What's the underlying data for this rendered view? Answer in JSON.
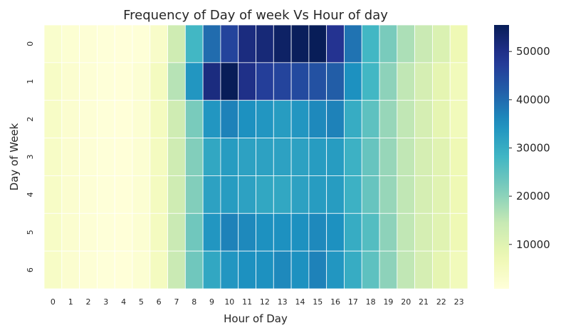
{
  "chart_data": {
    "type": "heatmap",
    "title": "Frequency of Day of week Vs Hour of day",
    "xlabel": "Hour of Day",
    "ylabel": "Day of Week",
    "x_categories": [
      "0",
      "1",
      "2",
      "3",
      "4",
      "5",
      "6",
      "7",
      "8",
      "9",
      "10",
      "11",
      "12",
      "13",
      "14",
      "15",
      "16",
      "17",
      "18",
      "19",
      "20",
      "21",
      "22",
      "23"
    ],
    "y_categories": [
      "0",
      "1",
      "2",
      "3",
      "4",
      "5",
      "6"
    ],
    "values": [
      [
        3000,
        2000,
        1500,
        1000,
        800,
        1200,
        3500,
        13000,
        28000,
        40000,
        46000,
        51000,
        52000,
        54000,
        55000,
        55500,
        49000,
        39000,
        28000,
        22000,
        17000,
        14000,
        11000,
        7000
      ],
      [
        4000,
        2500,
        1500,
        1000,
        900,
        1800,
        5000,
        16000,
        34000,
        51000,
        55500,
        50000,
        47000,
        46000,
        45000,
        44000,
        42000,
        35000,
        28000,
        20000,
        15000,
        12000,
        9000,
        6000
      ],
      [
        4000,
        2500,
        1500,
        1000,
        900,
        2000,
        5000,
        13000,
        22000,
        34000,
        37000,
        35000,
        34000,
        33000,
        34000,
        36000,
        37000,
        30000,
        25000,
        19000,
        15000,
        12000,
        9000,
        6000
      ],
      [
        4000,
        2500,
        1500,
        1000,
        900,
        2000,
        5000,
        13000,
        21000,
        31000,
        33000,
        32000,
        32000,
        32000,
        32000,
        33000,
        33000,
        29000,
        24000,
        19000,
        15000,
        12000,
        10000,
        7000
      ],
      [
        4000,
        2500,
        1500,
        1000,
        900,
        2000,
        5000,
        13000,
        21000,
        32000,
        33000,
        32000,
        31000,
        31000,
        32000,
        33000,
        33000,
        29000,
        24000,
        19000,
        15000,
        12000,
        10000,
        7000
      ],
      [
        4000,
        2500,
        1500,
        1000,
        900,
        2000,
        5000,
        14000,
        23000,
        34000,
        37000,
        36000,
        35000,
        35000,
        35000,
        36000,
        35000,
        30000,
        26000,
        20000,
        15000,
        12000,
        10000,
        7000
      ],
      [
        4000,
        2500,
        1500,
        1000,
        900,
        2000,
        5000,
        14000,
        23000,
        31000,
        34000,
        35000,
        35000,
        36000,
        35000,
        37000,
        34000,
        30000,
        25000,
        20000,
        15000,
        12000,
        9000,
        6000
      ]
    ],
    "colorbar": {
      "ticks": [
        "10000",
        "20000",
        "30000",
        "40000",
        "50000"
      ],
      "tick_values": [
        10000,
        20000,
        30000,
        40000,
        50000
      ],
      "vmin": 800,
      "vmax": 55500,
      "colormap": "YlGnBu"
    },
    "grid": false,
    "cell_border_color": "#ffffff"
  }
}
